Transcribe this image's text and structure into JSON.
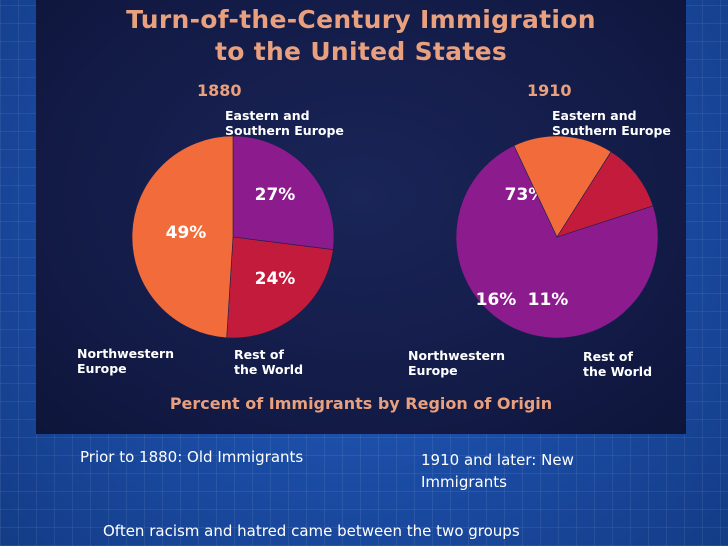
{
  "chart_data": {
    "type": "pie",
    "title_line1": "Turn-of-the-Century Immigration",
    "title_line2": "to the United States",
    "subtitle": "Percent of Immigrants by Region of Origin",
    "pies": [
      {
        "label": "1880",
        "slices": [
          {
            "name_lines": [
              "Eastern and",
              "Southern Europe"
            ],
            "value": 27,
            "label": "27%",
            "color": "#8c1c8e"
          },
          {
            "name_lines": [
              "Rest of",
              "the World"
            ],
            "value": 24,
            "label": "24%",
            "color": "#c21b3c"
          },
          {
            "name_lines": [
              "Northwestern",
              "Europe"
            ],
            "value": 49,
            "label": "49%",
            "color": "#f26b3a"
          }
        ]
      },
      {
        "label": "1910",
        "slices": [
          {
            "name_lines": [
              "Eastern and",
              "Southern Europe"
            ],
            "value": 73,
            "label": "73%",
            "color": "#8c1c8e"
          },
          {
            "name_lines": [
              "Northwestern",
              "Europe"
            ],
            "value": 16,
            "label": "16%",
            "color": "#f26b3a"
          },
          {
            "name_lines": [
              "Rest of",
              "the World"
            ],
            "value": 11,
            "label": "11%",
            "color": "#c21b3c"
          }
        ]
      }
    ]
  },
  "captions": {
    "old": "Prior to 1880: Old Immigrants",
    "new": "1910 and later: New Immigrants",
    "bottom": "Often racism and hatred came between the two groups"
  },
  "colors": {
    "title": "#e8a07e",
    "label_text": "#ffffff"
  }
}
